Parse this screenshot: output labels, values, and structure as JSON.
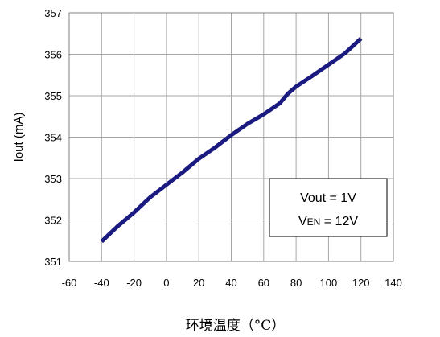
{
  "chart_data": {
    "type": "line",
    "title": "",
    "xlabel": "环境温度（°C）",
    "ylabel": "Iout (mA)",
    "xlim": [
      -60,
      140
    ],
    "ylim": [
      351,
      357
    ],
    "xticks": [
      -60,
      -40,
      -20,
      0,
      20,
      40,
      60,
      80,
      100,
      120,
      140
    ],
    "yticks": [
      351,
      352,
      353,
      354,
      355,
      356,
      357
    ],
    "grid": true,
    "legend_position": "bottom-right",
    "annotation": {
      "line1": "Vout = 1V",
      "line2_main": "V",
      "line2_sub": "EN",
      "line2_rest": " = 12V"
    },
    "series": [
      {
        "color": "#1a1a80",
        "x": [
          -40,
          -30,
          -20,
          -10,
          0,
          10,
          20,
          30,
          40,
          50,
          60,
          70,
          75,
          80,
          90,
          100,
          110,
          120
        ],
        "y": [
          351.48,
          351.85,
          352.18,
          352.55,
          352.85,
          353.15,
          353.48,
          353.75,
          354.05,
          354.32,
          354.55,
          354.82,
          355.05,
          355.22,
          355.48,
          355.75,
          356.02,
          356.38
        ]
      }
    ]
  }
}
